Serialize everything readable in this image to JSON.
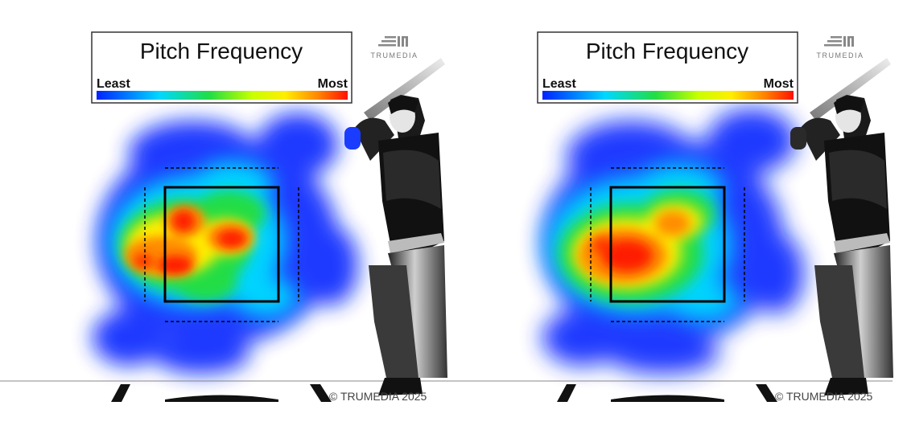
{
  "panels": [
    {
      "legend": {
        "title": "Pitch Frequency",
        "low_label": "Least",
        "high_label": "Most"
      },
      "brand": {
        "logo_text": "TRUMEDIA",
        "copyright": "© TRUMEDIA 2025"
      }
    },
    {
      "legend": {
        "title": "Pitch Frequency",
        "low_label": "Least",
        "high_label": "Most"
      },
      "brand": {
        "logo_text": "TRUMEDIA",
        "copyright": "© TRUMEDIA 2025"
      }
    }
  ],
  "colors": {
    "scale": [
      "#0022ff",
      "#00aaff",
      "#00e6ff",
      "#22dd44",
      "#c8ff00",
      "#ffee00",
      "#ff9900",
      "#ff2200"
    ],
    "strike_zone": "#000000",
    "batter_dark": "#111111",
    "batter_light": "#e0e0e0"
  },
  "chart_data": [
    {
      "type": "heatmap",
      "title": "Pitch Frequency",
      "legend": [
        "Least",
        "Most"
      ],
      "color_scale": "blue-to-red (Least → Most)",
      "hot_spots": [
        {
          "region": "middle-middle / inside-middle",
          "level": "Most"
        },
        {
          "region": "outside-middle (beyond plate)",
          "level": "high"
        },
        {
          "region": "upper-middle",
          "level": "high"
        },
        {
          "region": "low and away (outside zone)",
          "level": "Least"
        }
      ]
    },
    {
      "type": "heatmap",
      "title": "Pitch Frequency",
      "legend": [
        "Least",
        "Most"
      ],
      "color_scale": "blue-to-red (Least → Most)",
      "hot_spots": [
        {
          "region": "middle-inside / low-inside of zone",
          "level": "Most"
        },
        {
          "region": "upper-middle",
          "level": "high"
        },
        {
          "region": "outside edge (beyond plate)",
          "level": "high"
        },
        {
          "region": "low and away (outside zone)",
          "level": "Least"
        }
      ]
    }
  ]
}
